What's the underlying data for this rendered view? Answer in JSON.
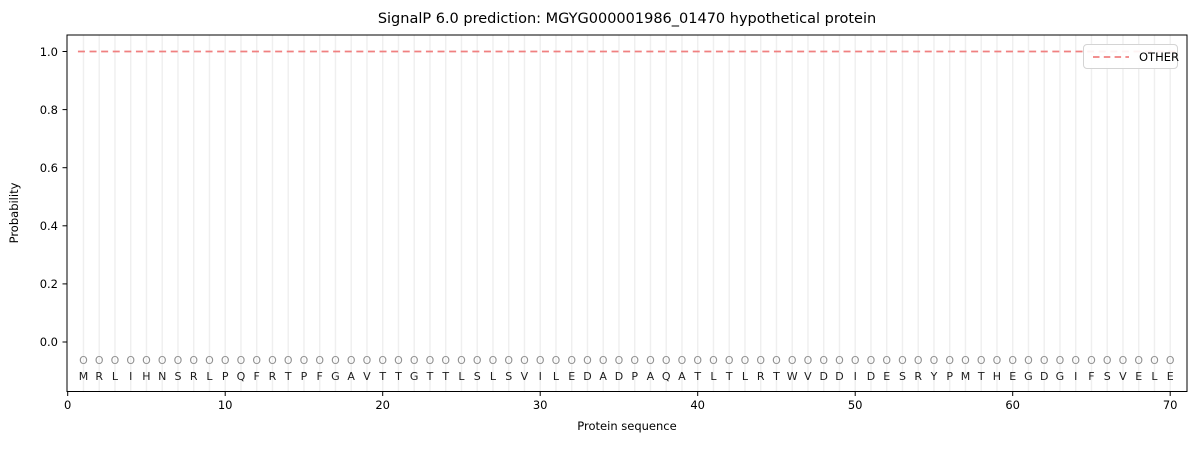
{
  "chart_data": {
    "type": "line",
    "title": "SignalP 6.0 prediction: MGYG000001986_01470 hypothetical protein",
    "xlabel": "Protein sequence",
    "ylabel": "Probability",
    "x_ticks": [
      0,
      10,
      20,
      30,
      40,
      50,
      60,
      70
    ],
    "y_ticks": [
      0.0,
      0.2,
      0.4,
      0.6,
      0.8,
      1.0
    ],
    "xlim": [
      0,
      71.1
    ],
    "ylim": [
      -0.175,
      1.05
    ],
    "grid": "light vertical gridline at every residue position",
    "sequence": "MRLIHNSRLPQFRTPFGAVTTGTTLSLSVILEDADPAQATLTLRTWVDDIDESRYPMTHEGDGIFSVELE",
    "sequence_length": 70,
    "per_position_prediction_mark": "O",
    "series": [
      {
        "name": "OTHER",
        "style": "dashed",
        "color": "#f08080",
        "x_range": [
          1,
          70
        ],
        "y_constant": 1.0
      }
    ],
    "legend": {
      "position": "upper right",
      "entries": [
        {
          "label": "OTHER",
          "style": "dashed",
          "color": "#f08080"
        }
      ]
    }
  },
  "colors": {
    "background": "#ffffff",
    "grid": "#efefef",
    "axis": "#000000",
    "residue_letter": "#1c1c1c",
    "position_mark": "#919191",
    "other_line": "#f08080"
  }
}
